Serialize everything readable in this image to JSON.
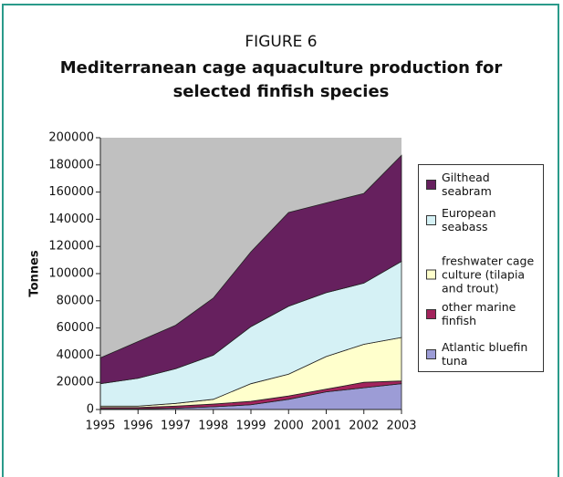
{
  "chart_data": {
    "type": "stacked_area",
    "figure_label": "FIGURE 6",
    "title": [
      "Mediterranean cage aquaculture production for",
      "selected finfish species"
    ],
    "y_label": "Tonnes",
    "categories": [
      "1995",
      "1996",
      "1997",
      "1998",
      "1999",
      "2000",
      "2001",
      "2002",
      "2003"
    ],
    "series": [
      {
        "name": "Atlantic bluefin tuna",
        "color": "#9c9cd6",
        "values": [
          500,
          500,
          1000,
          2000,
          3500,
          7500,
          13000,
          16000,
          19000
        ]
      },
      {
        "name": "other marine finfish",
        "color": "#a3235c",
        "values": [
          1000,
          1000,
          1500,
          2000,
          2500,
          2500,
          2000,
          4000,
          2000
        ]
      },
      {
        "name": "freshwater cage culture (tilapia and trout)",
        "color": "#ffffcc",
        "values": [
          1000,
          1000,
          2000,
          3500,
          13000,
          16000,
          24000,
          28000,
          32000
        ]
      },
      {
        "name": "European seabass",
        "color": "#d5f1f5",
        "values": [
          16500,
          20500,
          25500,
          32500,
          42000,
          50000,
          47000,
          45000,
          56000
        ]
      },
      {
        "name": "Gilthead seabram",
        "color": "#66205e",
        "values": [
          19000,
          27000,
          32000,
          42000,
          55000,
          69000,
          66000,
          66000,
          78000
        ]
      }
    ],
    "ylim": [
      0,
      200000
    ],
    "yticks": [
      0,
      20000,
      40000,
      60000,
      80000,
      100000,
      120000,
      140000,
      160000,
      180000,
      200000
    ],
    "plot_background": "#c0c0c0",
    "legend": "right"
  }
}
